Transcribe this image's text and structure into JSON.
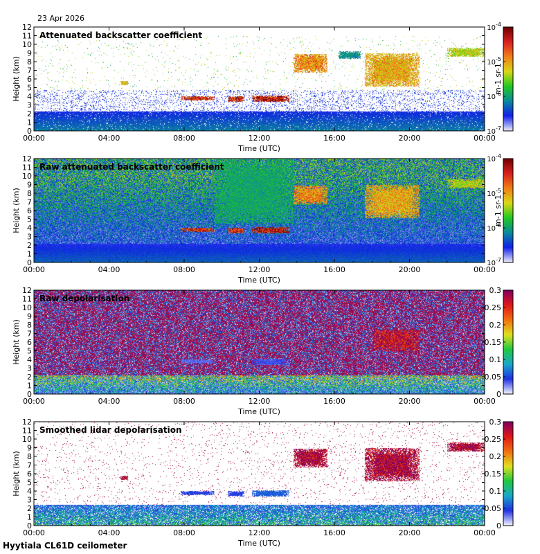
{
  "date_label": "23 Apr 2026",
  "footer_label": "Hyytiala CL61D ceilometer",
  "colors": {
    "log_colormap": [
      "#e8e8f8",
      "#1020e8",
      "#0a8a9a",
      "#22c822",
      "#d8d818",
      "#f08018",
      "#d82020",
      "#700000"
    ],
    "depol_colormap": [
      "#f0f0ff",
      "#2030e0",
      "#1aa8c8",
      "#20c840",
      "#e0e020",
      "#f07010",
      "#e01818",
      "#800060"
    ]
  },
  "chart_data": [
    {
      "type": "heatmap",
      "title": "Attenuated backscatter coefficient",
      "xlabel": "Time (UTC)",
      "ylabel": "Height (km)",
      "x_ticks": [
        "00:00",
        "04:00",
        "08:00",
        "12:00",
        "16:00",
        "20:00",
        "00:00"
      ],
      "y_ticks": [
        "0",
        "1",
        "2",
        "3",
        "4",
        "5",
        "6",
        "7",
        "8",
        "9",
        "10",
        "11",
        "12"
      ],
      "xlim_hours": [
        0,
        24
      ],
      "ylim_km": [
        0,
        12
      ],
      "colorbar": {
        "scale": "log",
        "ticks": [
          "10^-7",
          "10^-6",
          "10^-5",
          "10^-4"
        ],
        "unit": "m-1 sr-1"
      },
      "variant": "filtered",
      "features": [
        {
          "t0": 7.8,
          "t1": 9.6,
          "h0": 3.6,
          "h1": 4.0,
          "strength": 0.85
        },
        {
          "t0": 10.3,
          "t1": 11.2,
          "h0": 3.4,
          "h1": 4.0,
          "strength": 0.85
        },
        {
          "t0": 11.6,
          "t1": 13.6,
          "h0": 3.4,
          "h1": 4.1,
          "strength": 0.9
        },
        {
          "t0": 4.6,
          "t1": 5.0,
          "h0": 5.3,
          "h1": 5.8,
          "strength": 0.6
        },
        {
          "t0": 13.8,
          "t1": 15.6,
          "h0": 6.8,
          "h1": 8.9,
          "strength": 0.7
        },
        {
          "t0": 17.6,
          "t1": 20.5,
          "h0": 5.2,
          "h1": 9.0,
          "strength": 0.65
        },
        {
          "t0": 22.0,
          "t1": 24.0,
          "h0": 8.6,
          "h1": 9.6,
          "strength": 0.55
        },
        {
          "t0": 16.2,
          "t1": 17.4,
          "h0": 8.4,
          "h1": 9.2,
          "strength": 0.3
        }
      ]
    },
    {
      "type": "heatmap",
      "title": "Raw attenuated backscatter coefficient",
      "xlabel": "Time (UTC)",
      "ylabel": "Height (km)",
      "x_ticks": [
        "00:00",
        "04:00",
        "08:00",
        "12:00",
        "16:00",
        "20:00",
        "00:00"
      ],
      "y_ticks": [
        "0",
        "1",
        "2",
        "3",
        "4",
        "5",
        "6",
        "7",
        "8",
        "9",
        "10",
        "11",
        "12"
      ],
      "xlim_hours": [
        0,
        24
      ],
      "ylim_km": [
        0,
        12
      ],
      "colorbar": {
        "scale": "log",
        "ticks": [
          "10^-7",
          "10^-6",
          "10^-5",
          "10^-4"
        ],
        "unit": "m-1 sr-1"
      },
      "variant": "raw",
      "features": [
        {
          "t0": 7.8,
          "t1": 9.6,
          "h0": 3.6,
          "h1": 4.0,
          "strength": 0.85
        },
        {
          "t0": 10.3,
          "t1": 11.2,
          "h0": 3.4,
          "h1": 4.0,
          "strength": 0.85
        },
        {
          "t0": 11.6,
          "t1": 13.6,
          "h0": 3.4,
          "h1": 4.1,
          "strength": 0.9
        },
        {
          "t0": 13.8,
          "t1": 15.6,
          "h0": 6.8,
          "h1": 8.9,
          "strength": 0.7
        },
        {
          "t0": 17.6,
          "t1": 20.5,
          "h0": 5.2,
          "h1": 9.0,
          "strength": 0.65
        },
        {
          "t0": 22.0,
          "t1": 24.0,
          "h0": 8.6,
          "h1": 9.6,
          "strength": 0.55
        },
        {
          "t0": 9.6,
          "t1": 13.8,
          "h0": 4.5,
          "h1": 12.0,
          "strength": 0.35
        }
      ]
    },
    {
      "type": "heatmap",
      "title": "Raw depolarisation",
      "xlabel": "Time (UTC)",
      "ylabel": "Height (km)",
      "x_ticks": [
        "00:00",
        "04:00",
        "08:00",
        "12:00",
        "16:00",
        "20:00",
        "00:00"
      ],
      "y_ticks": [
        "0",
        "1",
        "2",
        "3",
        "4",
        "5",
        "6",
        "7",
        "8",
        "9",
        "10",
        "11",
        "12"
      ],
      "xlim_hours": [
        0,
        24
      ],
      "ylim_km": [
        0,
        12
      ],
      "colorbar": {
        "scale": "linear",
        "ticks": [
          "0",
          "0.05",
          "0.1",
          "0.15",
          "0.2",
          "0.25",
          "0.3"
        ],
        "unit": ""
      },
      "variant": "depol_raw",
      "features": [
        {
          "t0": 7.8,
          "t1": 9.6,
          "h0": 3.6,
          "h1": 4.0,
          "strength": 0.1
        },
        {
          "t0": 11.6,
          "t1": 13.6,
          "h0": 3.4,
          "h1": 4.1,
          "strength": 0.12
        },
        {
          "t0": 18.0,
          "t1": 20.5,
          "h0": 5.0,
          "h1": 7.5,
          "strength": 0.9
        }
      ]
    },
    {
      "type": "heatmap",
      "title": "Smoothed lidar depolarisation",
      "xlabel": "Time (UTC)",
      "ylabel": "Height (km)",
      "x_ticks": [
        "00:00",
        "04:00",
        "08:00",
        "12:00",
        "16:00",
        "20:00",
        "00:00"
      ],
      "y_ticks": [
        "0",
        "1",
        "2",
        "3",
        "4",
        "5",
        "6",
        "7",
        "8",
        "9",
        "10",
        "11",
        "12"
      ],
      "xlim_hours": [
        0,
        24
      ],
      "ylim_km": [
        0,
        12
      ],
      "colorbar": {
        "scale": "linear",
        "ticks": [
          "0",
          "0.05",
          "0.1",
          "0.15",
          "0.2",
          "0.25",
          "0.3"
        ],
        "unit": ""
      },
      "variant": "depol_smooth",
      "features": [
        {
          "t0": 7.8,
          "t1": 9.6,
          "h0": 3.6,
          "h1": 4.0,
          "strength": 0.15
        },
        {
          "t0": 10.3,
          "t1": 11.2,
          "h0": 3.4,
          "h1": 4.0,
          "strength": 0.15
        },
        {
          "t0": 11.6,
          "t1": 13.6,
          "h0": 3.4,
          "h1": 4.1,
          "strength": 0.2
        },
        {
          "t0": 4.6,
          "t1": 5.0,
          "h0": 5.3,
          "h1": 5.8,
          "strength": 0.95
        },
        {
          "t0": 13.8,
          "t1": 15.6,
          "h0": 6.8,
          "h1": 8.9,
          "strength": 0.95
        },
        {
          "t0": 17.6,
          "t1": 20.5,
          "h0": 5.2,
          "h1": 9.0,
          "strength": 0.95
        },
        {
          "t0": 22.0,
          "t1": 24.0,
          "h0": 8.6,
          "h1": 9.6,
          "strength": 0.95
        }
      ]
    }
  ]
}
